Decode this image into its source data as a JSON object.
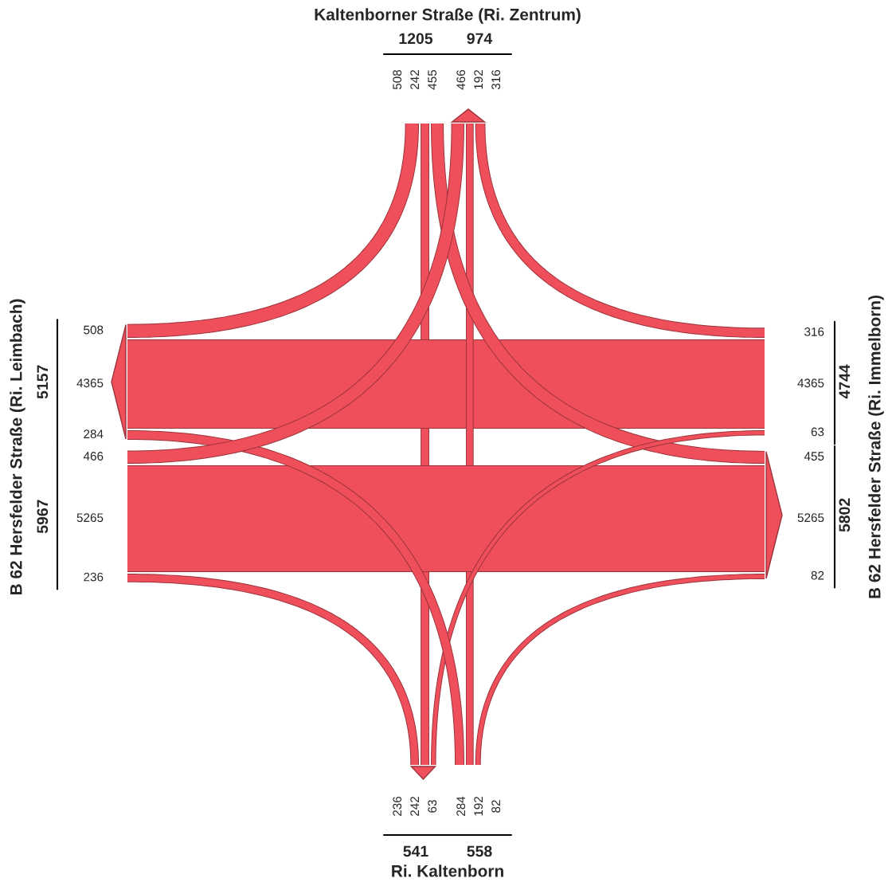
{
  "chart_data": {
    "type": "other",
    "categories": [
      "Kaltenborner Straße (Ri. Zentrum)",
      "B 62 Hersfelder Straße (Ri. Immelborn)",
      "Ri. Kaltenborn",
      "B 62 Hersfelder Straße (Ri. Leimbach)"
    ],
    "series": [
      {
        "color": "#ee4f5a",
        "values": [
          null,
          455,
          242,
          508
        ]
      },
      {
        "color": "#ee4f5a",
        "values": [
          316,
          null,
          63,
          4365
        ]
      },
      {
        "color": "#ee4f5a",
        "values": [
          192,
          82,
          null,
          284
        ]
      },
      {
        "color": "#ee4f5a",
        "values": [
          466,
          5265,
          236,
          null
        ]
      }
    ],
    "data_labels": true,
    "annotations": [
      "455",
      "242",
      "508",
      "316",
      "63",
      "4365",
      "192",
      "82",
      "284",
      "466",
      "5265",
      "236"
    ],
    "totals": [
      "1205",
      "974",
      "4744",
      "5802",
      "558",
      "541",
      "5967",
      "5157"
    ]
  }
}
